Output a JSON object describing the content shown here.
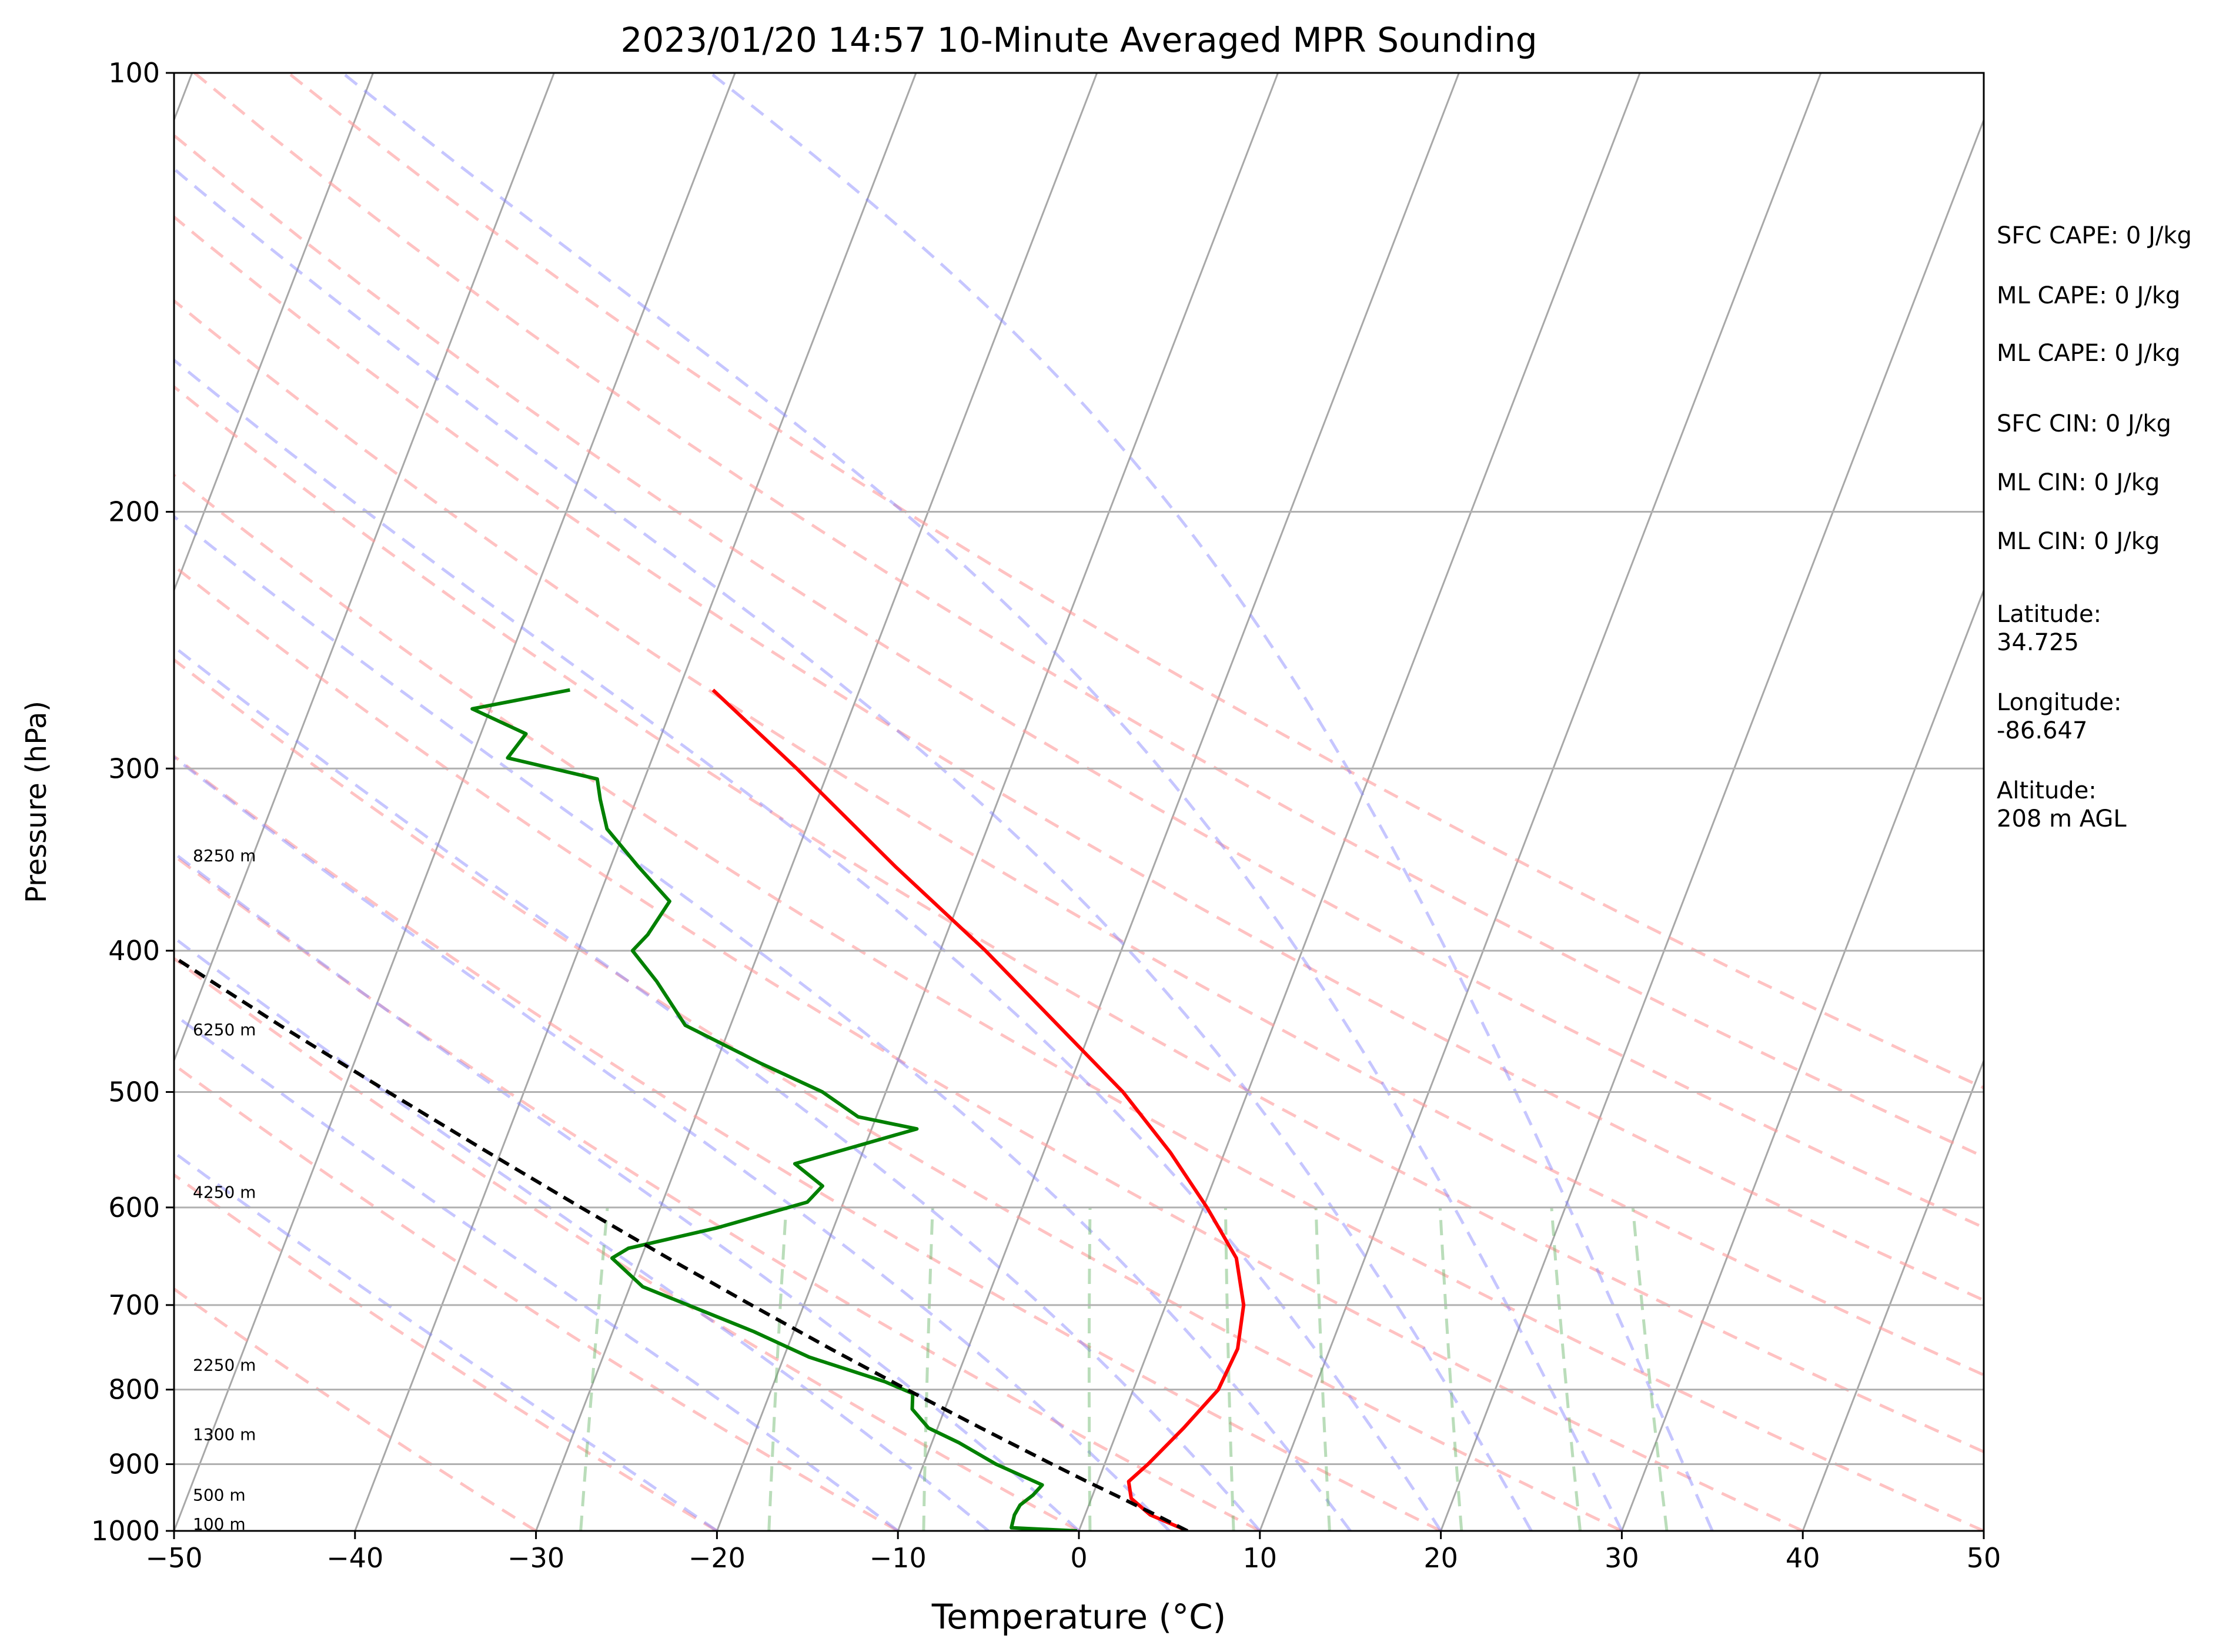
{
  "chart_data": {
    "type": "line",
    "subtype": "skew-t log-p",
    "title": "2023/01/20 14:57 10-Minute Averaged MPR Sounding",
    "xlabel": "Temperature (°C)",
    "ylabel": "Pressure (hPa)",
    "xlim": [
      -50,
      50
    ],
    "ylim": [
      1000,
      100
    ],
    "y_scale": "log",
    "x_ticks": [
      "−50",
      "−40",
      "−30",
      "−20",
      "−10",
      "0",
      "10",
      "20",
      "30",
      "40",
      "50"
    ],
    "y_ticks": [
      "100",
      "200",
      "300",
      "400",
      "500",
      "600",
      "700",
      "800",
      "900",
      "1000"
    ],
    "grid": "horizontal pressure lines; skewed isotherms",
    "series": [
      {
        "role": "temperature",
        "color": "#ff0000",
        "points": [
          [
            1000,
            6.0
          ],
          [
            975,
            3.6
          ],
          [
            950,
            2.2
          ],
          [
            925,
            1.7
          ],
          [
            900,
            2.4
          ],
          [
            850,
            3.6
          ],
          [
            800,
            4.7
          ],
          [
            750,
            4.9
          ],
          [
            700,
            4.3
          ],
          [
            650,
            2.9
          ],
          [
            600,
            0.2
          ],
          [
            550,
            -3.0
          ],
          [
            500,
            -6.9
          ],
          [
            450,
            -11.9
          ],
          [
            400,
            -17.5
          ],
          [
            350,
            -24.3
          ],
          [
            300,
            -31.8
          ],
          [
            265,
            -38.1
          ]
        ]
      },
      {
        "role": "dewpoint",
        "color": "#008000",
        "points": [
          [
            1000,
            -0.1
          ],
          [
            995,
            -3.8
          ],
          [
            975,
            -3.9
          ],
          [
            960,
            -3.8
          ],
          [
            945,
            -3.3
          ],
          [
            930,
            -3.0
          ],
          [
            900,
            -6.0
          ],
          [
            870,
            -8.5
          ],
          [
            850,
            -10.5
          ],
          [
            825,
            -11.8
          ],
          [
            805,
            -12.1
          ],
          [
            790,
            -13.9
          ],
          [
            760,
            -18.6
          ],
          [
            730,
            -22.2
          ],
          [
            700,
            -26.4
          ],
          [
            680,
            -29.3
          ],
          [
            650,
            -31.6
          ],
          [
            640,
            -30.9
          ],
          [
            620,
            -26.5
          ],
          [
            595,
            -22.0
          ],
          [
            580,
            -21.5
          ],
          [
            560,
            -23.5
          ],
          [
            530,
            -17.5
          ],
          [
            520,
            -21.0
          ],
          [
            500,
            -23.5
          ],
          [
            478,
            -27.5
          ],
          [
            450,
            -32.5
          ],
          [
            420,
            -35.0
          ],
          [
            400,
            -37.0
          ],
          [
            390,
            -36.5
          ],
          [
            370,
            -36.0
          ],
          [
            350,
            -38.5
          ],
          [
            330,
            -41.0
          ],
          [
            315,
            -42.0
          ],
          [
            305,
            -42.6
          ],
          [
            295,
            -48.0
          ],
          [
            284,
            -47.5
          ],
          [
            273,
            -51.0
          ],
          [
            265,
            -46.0
          ]
        ]
      },
      {
        "role": "parcel",
        "color": "#000000",
        "style": "dashed",
        "points": [
          [
            1000,
            6.0
          ],
          [
            975,
            3.9
          ],
          [
            950,
            1.7
          ],
          [
            925,
            -0.6
          ],
          [
            900,
            -2.9
          ],
          [
            850,
            -7.6
          ],
          [
            800,
            -12.5
          ],
          [
            750,
            -17.6
          ],
          [
            700,
            -22.9
          ],
          [
            650,
            -28.5
          ],
          [
            600,
            -34.4
          ],
          [
            550,
            -40.7
          ],
          [
            500,
            -47.5
          ],
          [
            450,
            -54.9
          ],
          [
            400,
            -62.9
          ],
          [
            350,
            -71.8
          ],
          [
            300,
            -81.9
          ],
          [
            265,
            -89.9
          ]
        ]
      }
    ],
    "height_labels": [
      {
        "pressure": 1000,
        "label": "100 m"
      },
      {
        "pressure": 955,
        "label": "500 m"
      },
      {
        "pressure": 868,
        "label": "1300 m"
      },
      {
        "pressure": 778,
        "label": "2250 m"
      },
      {
        "pressure": 592,
        "label": "4250 m"
      },
      {
        "pressure": 458,
        "label": "6250 m"
      },
      {
        "pressure": 348,
        "label": "8250 m"
      }
    ],
    "reference_lines": {
      "dry_adiabats_theta_c": [
        -30,
        -20,
        -10,
        0,
        10,
        20,
        30,
        40,
        50,
        60,
        70,
        80,
        90,
        100,
        110
      ],
      "moist_adiabats_c": [
        -20,
        -10,
        -5,
        0,
        5,
        10,
        15,
        20,
        25,
        30,
        35
      ],
      "mixing_ratio_gkg": [
        0.4,
        1,
        2,
        4,
        7,
        10,
        16,
        24,
        32
      ],
      "dry_adiabat_color": "#ff9999",
      "moist_adiabat_color": "#8080ff",
      "mixing_ratio_color": "#66b366"
    }
  },
  "side_panel": [
    {
      "text": "SFC CAPE: 0 J/kg"
    },
    {
      "text": "ML CAPE: 0 J/kg"
    },
    {
      "text": "ML CAPE: 0 J/kg"
    },
    {
      "text": "SFC CIN: 0 J/kg"
    },
    {
      "text": "ML CIN: 0 J/kg"
    },
    {
      "text": "ML CIN: 0 J/kg"
    },
    {
      "text": "Latitude:\n34.725"
    },
    {
      "text": "Longitude:\n-86.647"
    },
    {
      "text": "Altitude:\n208 m AGL"
    }
  ]
}
